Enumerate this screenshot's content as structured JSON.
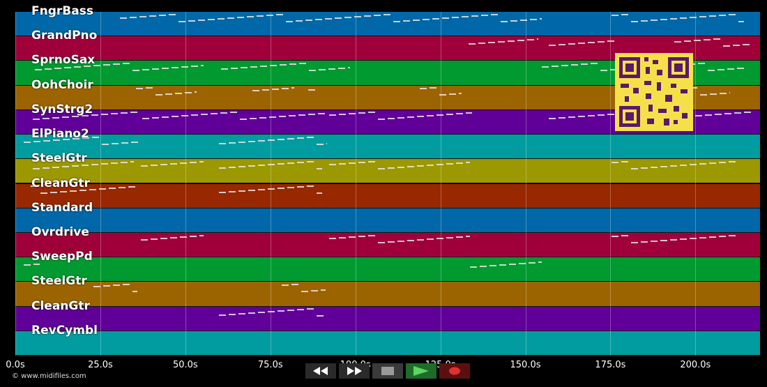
{
  "tracks": [
    {
      "name": "FngrBass",
      "color": "#0068a8"
    },
    {
      "name": "GrandPno",
      "color": "#a0003a"
    },
    {
      "name": "SprnoSax",
      "color": "#009a30"
    },
    {
      "name": "OohChoir",
      "color": "#9c6400"
    },
    {
      "name": "SynStrg2",
      "color": "#600098"
    },
    {
      "name": "ElPiano2",
      "color": "#009ca0"
    },
    {
      "name": "SteelGtr",
      "color": "#9c9800"
    },
    {
      "name": "CleanGtr",
      "color": "#982800"
    },
    {
      "name": "Standard",
      "color": "#0068a8"
    },
    {
      "name": "Ovrdrive",
      "color": "#a0003a"
    },
    {
      "name": "SweepPd",
      "color": "#009a30"
    },
    {
      "name": "SteelGtr",
      "color": "#9c6400"
    },
    {
      "name": "CleanGtr",
      "color": "#600098"
    },
    {
      "name": "RevCymbl",
      "color": "#009ca0"
    }
  ],
  "timeline": {
    "max_seconds": 219,
    "ticks": [
      "0.0s",
      "25.0s",
      "50.0s",
      "75.0s",
      "100.0s",
      "125.0s",
      "150.0s",
      "175.0s",
      "200.0s"
    ],
    "tick_seconds": [
      0,
      25,
      50,
      75,
      100,
      125,
      150,
      175,
      200
    ]
  },
  "transport": {
    "buttons": [
      {
        "name": "rewind-button",
        "icon": "rewind-icon",
        "bg": "#2a2a2a"
      },
      {
        "name": "fast-forward-button",
        "icon": "fast-forward-icon",
        "bg": "#2a2a2a"
      },
      {
        "name": "stop-button",
        "icon": "stop-icon",
        "bg": "#3a3a3a"
      },
      {
        "name": "play-button",
        "icon": "play-icon",
        "bg": "#1f6b2a"
      },
      {
        "name": "record-button",
        "icon": "record-icon",
        "bg": "#5a1010"
      }
    ]
  },
  "copyright": "© www.midifiles.com",
  "qr_icon": "qr-code-icon"
}
